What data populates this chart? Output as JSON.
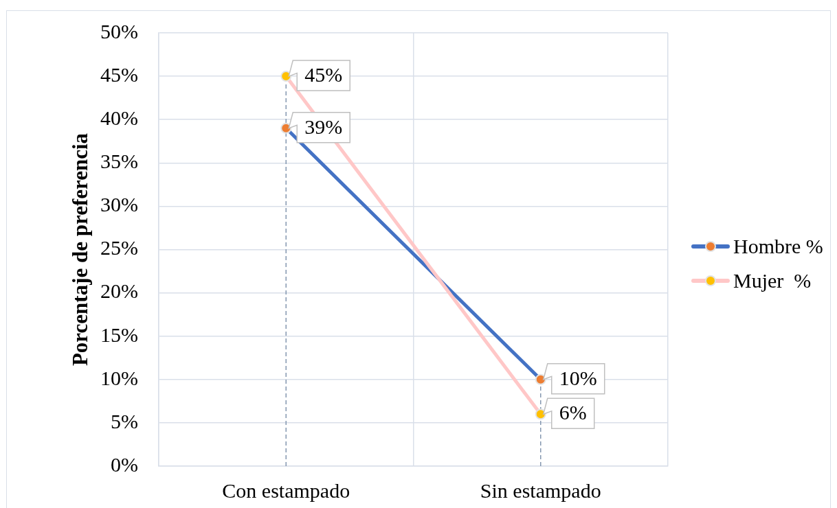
{
  "chart_data": {
    "type": "line",
    "ylabel": "Porcentaje de preferencia",
    "categories": [
      "Con estampado",
      "Sin estampado"
    ],
    "series": [
      {
        "name": "Hombre %",
        "color": "#4472c4",
        "colors": [
          "#ed7d31",
          "#ed7d31"
        ],
        "values": [
          39,
          10
        ],
        "value_labels": [
          "39%",
          "10%"
        ]
      },
      {
        "name": "Mujer  %",
        "color": "#ffc7c7",
        "colors": [
          "#ffc000",
          "#ffc000"
        ],
        "values": [
          45,
          6
        ],
        "value_labels": [
          "45%",
          "6%"
        ]
      }
    ],
    "ylim": [
      0,
      50
    ],
    "yticks": [
      {
        "value": 0,
        "label": "0%"
      },
      {
        "value": 5,
        "label": "5%"
      },
      {
        "value": 10,
        "label": "10%"
      },
      {
        "value": 15,
        "label": "15%"
      },
      {
        "value": 20,
        "label": "20%"
      },
      {
        "value": 25,
        "label": "25%"
      },
      {
        "value": 30,
        "label": "30%"
      },
      {
        "value": 35,
        "label": "35%"
      },
      {
        "value": 40,
        "label": "40%"
      },
      {
        "value": 45,
        "label": "45%"
      },
      {
        "value": 50,
        "label": "50%"
      }
    ],
    "grid": true,
    "legend": "right",
    "marker": "circle",
    "ref_lines": [
      {
        "axis": "x",
        "value": "Con estampado",
        "color": "#8497b0",
        "line_style": "dashed"
      },
      {
        "axis": "x",
        "value": "Sin estampado",
        "color": "#8497b0",
        "line_style": "dashed"
      }
    ]
  }
}
